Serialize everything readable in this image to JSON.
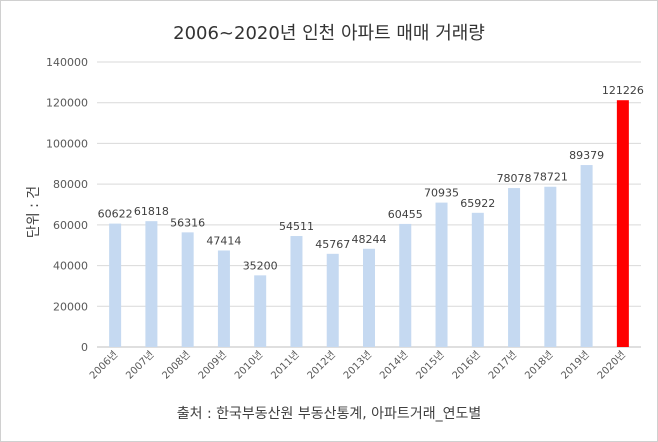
{
  "chart_data": {
    "type": "bar",
    "title": "2006~2020년 인천 아파트 매매 거래량",
    "ylabel": "단위 : 건",
    "xlabel": "",
    "source": "출처 : 한국부동산원 부동산통계, 아파트거래_연도별",
    "categories": [
      "2006년",
      "2007년",
      "2008년",
      "2009년",
      "2010년",
      "2011년",
      "2012년",
      "2013년",
      "2014년",
      "2015년",
      "2016년",
      "2017년",
      "2018년",
      "2019년",
      "2020년"
    ],
    "values": [
      60622,
      61818,
      56316,
      47414,
      35200,
      54511,
      45767,
      48244,
      60455,
      70935,
      65922,
      78078,
      78721,
      89379,
      121226
    ],
    "ylim": [
      0,
      140000
    ],
    "yticks": [
      0,
      20000,
      40000,
      60000,
      80000,
      100000,
      120000,
      140000
    ],
    "grid": true,
    "bar_color": "#c5d9f1",
    "highlight_color": "#ff0000",
    "highlight_index": 14
  }
}
